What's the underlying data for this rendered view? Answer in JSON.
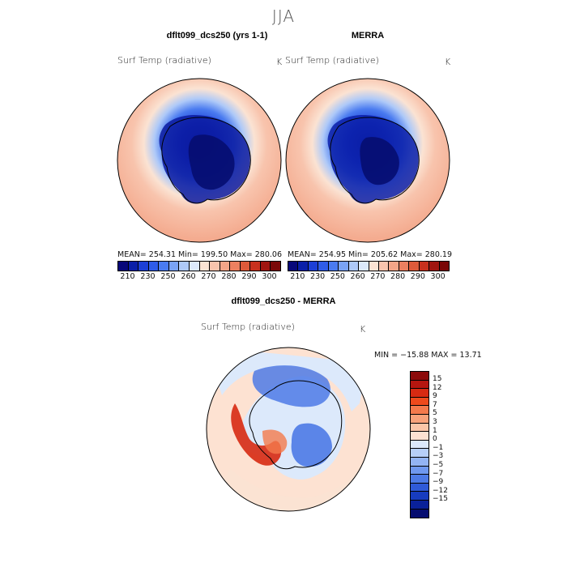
{
  "season": "JJA",
  "panels": [
    {
      "title": "dflt099_dcs250 (yrs 1-1)",
      "variable": "Surf Temp (radiative)",
      "units": "K",
      "stats": "MEAN= 254.31   Min= 199.50   Max= 280.06"
    },
    {
      "title": "MERRA",
      "variable": "Surf Temp (radiative)",
      "units": "K",
      "stats": "MEAN= 254.95   Min= 205.62   Max= 280.19"
    }
  ],
  "abs_colorbar": {
    "colors": [
      "#08087a",
      "#0a1fa8",
      "#1c3fd6",
      "#2f5ce8",
      "#4a7bf0",
      "#7aa3f5",
      "#aec9f8",
      "#dce9fb",
      "#fbe3d3",
      "#f8c4ad",
      "#f3a588",
      "#ec8060",
      "#de5a3a",
      "#c8311e",
      "#a01510",
      "#7a0808"
    ],
    "ticks": [
      "210",
      "230",
      "250",
      "260",
      "270",
      "280",
      "290",
      "300"
    ]
  },
  "diff_panel": {
    "title": "dflt099_dcs250 - MERRA",
    "variable": "Surf Temp (radiative)",
    "units": "K",
    "minmax": "MIN = −15.88 MAX =   13.71"
  },
  "diff_colorbar": {
    "colors": [
      "#8c0a0a",
      "#b5160f",
      "#d72a12",
      "#ee4a1c",
      "#f47a4c",
      "#f8a27a",
      "#fbc6a8",
      "#fde2d2",
      "#dce9fb",
      "#b7cff8",
      "#93b4f4",
      "#6f98ef",
      "#4d7ae6",
      "#2f5ad8",
      "#173cbf",
      "#0a2199",
      "#060d70"
    ],
    "ticks": [
      "15",
      "12",
      "9",
      "7",
      "5",
      "3",
      "1",
      "0",
      "−1",
      "−3",
      "−5",
      "−7",
      "−9",
      "−12",
      "−15"
    ]
  },
  "colors": {
    "land_outline": "#000000",
    "title_grey": "#555555"
  }
}
